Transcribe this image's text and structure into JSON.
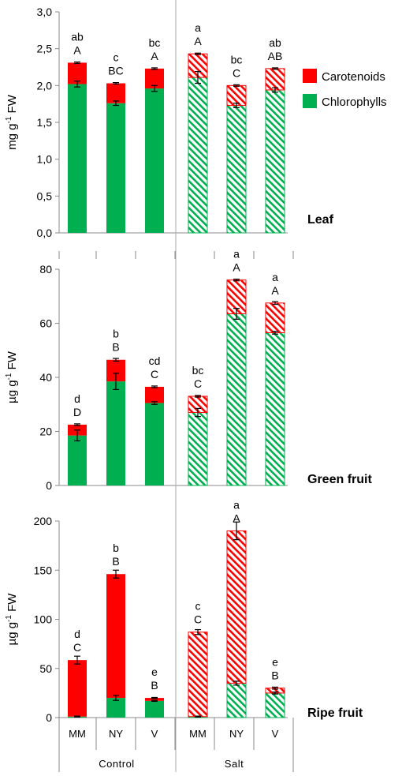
{
  "legend": [
    {
      "label": "Carotenoids",
      "color": "#ff0000"
    },
    {
      "label": "Chlorophylls",
      "color": "#00b050"
    }
  ],
  "groups": [
    "Control",
    "Salt"
  ],
  "chart_data": [
    {
      "type": "bar",
      "stacked": true,
      "panel_label": "Leaf",
      "ylabel_main": "mg g",
      "ylabel_sup": "-1",
      "ylabel_tail": " FW",
      "ylim": [
        0,
        3
      ],
      "yticks": [
        "0,0",
        "0,5",
        "1,0",
        "1,5",
        "2,0",
        "2,5",
        "3,0"
      ],
      "yticks_values": [
        0,
        0.5,
        1,
        1.5,
        2,
        2.5,
        3
      ],
      "categories": [
        "MM",
        "NY",
        "V",
        "MM",
        "NY",
        "V"
      ],
      "treatment": [
        "Control",
        "Control",
        "Control",
        "Salt",
        "Salt",
        "Salt"
      ],
      "series": [
        {
          "name": "Chlorophylls",
          "values": [
            2.02,
            1.76,
            1.96,
            2.11,
            1.73,
            1.94
          ],
          "errors": [
            0.04,
            0.03,
            0.04,
            0.08,
            0.03,
            0.03
          ]
        },
        {
          "name": "Carotenoids",
          "values": [
            0.29,
            0.27,
            0.27,
            0.32,
            0.27,
            0.29
          ],
          "errors": [
            0.01,
            0.01,
            0.01,
            0.01,
            0.01,
            0.01
          ]
        }
      ],
      "letters_top": [
        "ab",
        "c",
        "bc",
        "a",
        "bc",
        "ab"
      ],
      "letters_bottom": [
        "A",
        "BC",
        "A",
        "A",
        "C",
        "AB"
      ]
    },
    {
      "type": "bar",
      "stacked": true,
      "panel_label": "Green fruit",
      "ylabel_main": "µg g",
      "ylabel_sup": "-1",
      "ylabel_tail": " FW",
      "ylim": [
        0,
        80
      ],
      "yticks": [
        "0",
        "20",
        "40",
        "60",
        "80"
      ],
      "yticks_values": [
        0,
        20,
        40,
        60,
        80
      ],
      "categories": [
        "MM",
        "NY",
        "V",
        "MM",
        "NY",
        "V"
      ],
      "treatment": [
        "Control",
        "Control",
        "Control",
        "Salt",
        "Salt",
        "Salt"
      ],
      "series": [
        {
          "name": "Chlorophylls",
          "values": [
            18.5,
            38.5,
            30.5,
            27,
            63.5,
            56.5
          ],
          "errors": [
            2,
            3,
            0.5,
            1.5,
            2,
            0.5
          ]
        },
        {
          "name": "Carotenoids",
          "values": [
            4,
            8,
            6,
            6,
            12.5,
            11
          ],
          "errors": [
            0.3,
            0.5,
            0.3,
            0.3,
            0.3,
            0.5
          ]
        }
      ],
      "letters_top": [
        "d",
        "b",
        "cd",
        "bc",
        "a",
        "a"
      ],
      "letters_bottom": [
        "D",
        "B",
        "C",
        "C",
        "A",
        "A"
      ]
    },
    {
      "type": "bar",
      "stacked": true,
      "panel_label": "Ripe fruit",
      "ylabel_main": "µg g",
      "ylabel_sup": "-1",
      "ylabel_tail": " FW",
      "ylim": [
        0,
        200
      ],
      "yticks": [
        "0",
        "50",
        "100",
        "150",
        "200"
      ],
      "yticks_values": [
        0,
        50,
        100,
        150,
        200
      ],
      "categories": [
        "MM",
        "NY",
        "V",
        "MM",
        "NY",
        "V"
      ],
      "treatment": [
        "Control",
        "Control",
        "Control",
        "Salt",
        "Salt",
        "Salt"
      ],
      "series": [
        {
          "name": "Chlorophylls",
          "values": [
            1,
            20,
            17,
            1,
            35,
            25
          ],
          "errors": [
            0.5,
            2.5,
            0.5,
            0.5,
            2,
            1
          ]
        },
        {
          "name": "Carotenoids",
          "values": [
            57.5,
            126,
            3,
            86,
            155,
            5
          ],
          "errors": [
            4,
            4,
            0.5,
            2.5,
            9,
            1
          ]
        }
      ],
      "letters_top": [
        "d",
        "b",
        "e",
        "c",
        "a",
        "e"
      ],
      "letters_bottom": [
        "C",
        "B",
        "B",
        "C",
        "A",
        "B"
      ]
    }
  ]
}
